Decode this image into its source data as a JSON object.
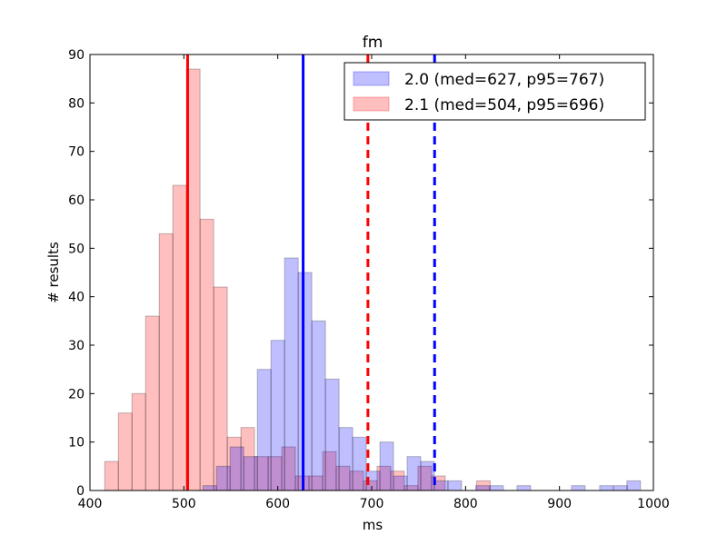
{
  "chart_data": {
    "type": "bar",
    "title": "fm",
    "xlabel": "ms",
    "ylabel": "# results",
    "xlim": [
      400,
      1000
    ],
    "ylim": [
      0,
      90
    ],
    "xticks": [
      400,
      500,
      600,
      700,
      800,
      900,
      1000
    ],
    "yticks": [
      0,
      10,
      20,
      30,
      40,
      50,
      60,
      70,
      80,
      90
    ],
    "grid": false,
    "legend_position": "top-right",
    "series": [
      {
        "name": "2.1 (med=504, p95=696)",
        "color": "#ff0000",
        "bin_width": 14.5,
        "bars": [
          {
            "x": 423,
            "count": 6
          },
          {
            "x": 437.5,
            "count": 16
          },
          {
            "x": 452,
            "count": 20
          },
          {
            "x": 466.5,
            "count": 36
          },
          {
            "x": 481,
            "count": 53
          },
          {
            "x": 495.5,
            "count": 63
          },
          {
            "x": 510,
            "count": 87
          },
          {
            "x": 524.5,
            "count": 56
          },
          {
            "x": 539,
            "count": 42
          },
          {
            "x": 553.5,
            "count": 11
          },
          {
            "x": 568,
            "count": 13
          },
          {
            "x": 582.5,
            "count": 7
          },
          {
            "x": 597,
            "count": 7
          },
          {
            "x": 611.5,
            "count": 9
          },
          {
            "x": 626,
            "count": 3
          },
          {
            "x": 640.5,
            "count": 3
          },
          {
            "x": 655,
            "count": 8
          },
          {
            "x": 669.5,
            "count": 5
          },
          {
            "x": 684,
            "count": 4
          },
          {
            "x": 698.5,
            "count": 2
          },
          {
            "x": 713,
            "count": 5
          },
          {
            "x": 727.5,
            "count": 4
          },
          {
            "x": 742,
            "count": 1
          },
          {
            "x": 756.5,
            "count": 5
          },
          {
            "x": 771,
            "count": 3
          },
          {
            "x": 819,
            "count": 2
          }
        ],
        "median": 504,
        "p95": 696
      },
      {
        "name": "2.0 (med=627, p95=767)",
        "color": "#0000ff",
        "bin_width": 14.5,
        "bars": [
          {
            "x": 527.5,
            "count": 1
          },
          {
            "x": 542,
            "count": 5
          },
          {
            "x": 556.5,
            "count": 9
          },
          {
            "x": 571,
            "count": 7
          },
          {
            "x": 585.5,
            "count": 25
          },
          {
            "x": 600,
            "count": 31
          },
          {
            "x": 614.5,
            "count": 48
          },
          {
            "x": 629,
            "count": 45
          },
          {
            "x": 643.5,
            "count": 35
          },
          {
            "x": 658,
            "count": 23
          },
          {
            "x": 672.5,
            "count": 13
          },
          {
            "x": 687,
            "count": 11
          },
          {
            "x": 701.5,
            "count": 4
          },
          {
            "x": 716,
            "count": 10
          },
          {
            "x": 730.5,
            "count": 3
          },
          {
            "x": 745,
            "count": 7
          },
          {
            "x": 759.5,
            "count": 6
          },
          {
            "x": 774,
            "count": 2
          },
          {
            "x": 788.5,
            "count": 2
          },
          {
            "x": 818,
            "count": 1
          },
          {
            "x": 833,
            "count": 1
          },
          {
            "x": 862,
            "count": 1
          },
          {
            "x": 920,
            "count": 1
          },
          {
            "x": 950,
            "count": 1
          },
          {
            "x": 965,
            "count": 1
          },
          {
            "x": 979,
            "count": 2
          }
        ],
        "median": 627,
        "p95": 767
      }
    ]
  }
}
